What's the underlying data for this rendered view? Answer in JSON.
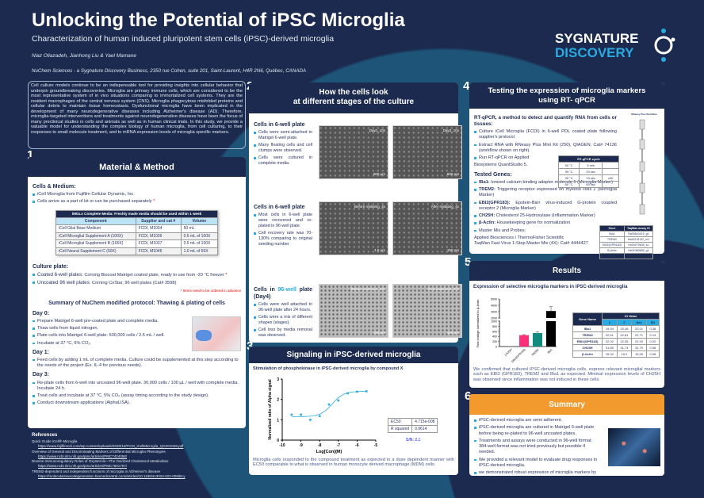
{
  "header": {
    "title": "Unlocking the Potential of iPSC Microglia",
    "subtitle": "Characterization of human induced pluripotent stem cells (iPSC)-derived microglia",
    "authors": "Niaz Oliazadeh, Jianhong Liu & Yael Mamane",
    "affiliation": "NuChem Sciences - a Sygnature Discovery Business, 2350 rue Cohen, suite 201, Saint-Laurent, H4R 2N6, Québec, CANADA",
    "logo_line1": "SYGNATURE",
    "logo_line2": "DISCOVERY"
  },
  "abstract": "Cell culture models continue to be an indispensable tool for providing insights into cellular behavior that underpin groundbreaking discoveries. Microglia are primary immune cells, which are considered to be the most representative system of in vivo situations comparing to immortalized cell systems. They are the resident macrophages of the central nervous system (CNS). Microglia phagocytose misfolded proteins and cellular debris to maintain tissue homeostasis. Dysfunctional microglia have been implicated in the development of many neurodegenerative diseases including Alzheimer's disease (AD). Therefore, microglia-targeted interventions and treatments against neurodegenerative diseases have been the focus of many preclinical studies in cells and animals as well as in human clinical trials. In this study, we provide a valuable model for understanding the complex biology of human microglia, from cell culturing, to their responses to small molecule treatment, and to mRNA expression levels of microglia specific markers.",
  "s1": {
    "num": "1",
    "title": "Material & Method",
    "cells_heading": "Cells & Medium:",
    "cells_items": [
      "iCell Microglia from Fujifilm Cellular Dynamic, Inc.",
      "Cells arrive as a part of kit or can be purchased separately"
    ],
    "media_table": {
      "caption": "iMGLs Complete Media: Freshly made media should be used within 1 week",
      "headers": [
        "Component",
        "Supplier and cat #",
        "Volume"
      ],
      "rows": [
        [
          "iCell Glial Base Medium",
          "FCDI, M1034",
          "50 mL"
        ],
        [
          "iCell Microglial Supplement A (100X)",
          "FCDI, M1036",
          "0.5 mL of 100X"
        ],
        [
          "iCell Microglial Supplement B (100X)",
          "FCDI, M1037",
          "0.5 mL of 100X"
        ],
        [
          "iCell Neural Supplement C (50X)",
          "FCDI, M1046",
          "1.0 mL of 50X"
        ]
      ]
    },
    "plate_heading": "Culture plate:",
    "plate_items": [
      {
        "label": "Coated 6-well plates:",
        "text": " Corning Biocoat Matrigel coated plate, ready to use from -20 °C freezer"
      },
      {
        "label": "Uncoated 96 well plates:",
        "text": " Corning CoStar, 96 well plates (Cat# 3598)"
      }
    ],
    "order_note": "* Items need to be ordered in advance",
    "protocol_title": "Summary of NuChem modified protocol: Thawing & plating of cells",
    "days": [
      {
        "day": "Day 0:",
        "items": [
          "Prepare Matrigel 6-well pre-coated plate and complete media.",
          "Thaw cells from liquid nitrogen.",
          "Plate cells into Matrigel 6-well plate: 500,000 cells / 2.5 mL / well.",
          "Incubate at 37 °C, 5% CO₂."
        ]
      },
      {
        "day": "Day 1:",
        "items": [
          "Feed cells by adding 1 mL of complete media. Culture could be supplemented at this step according to the needs of the project (Ex. IL-4 for previous needs)."
        ]
      },
      {
        "day": "Day 3:",
        "items": [
          "Re-plate cells from 6-well into uncoated 96-well plate. 30,000 cells / 100 µL / well with complete media. Incubate 24 h.",
          "Treat cells and incubate at 37 °C, 5% CO₂ (assay timing according to the study design).",
          "Conduct downstream applications (AlphaLISA)."
        ]
      }
    ]
  },
  "references": {
    "heading": "References",
    "items": [
      {
        "title": "Quick Guide iCell® Microglia",
        "url": "https://www.fujifilmcdi.com/wp-content/uploads/2020/10/FCDI_iCellMicroglia_QG201028.pdf"
      },
      {
        "title": "Overview of General and Discriminating Markers of Differential Microglia Phenotypes",
        "url": "https://www.ncbi.nlm.nih.gov/pmc/articles/PMC7424058/"
      },
      {
        "title": "Diverse Immunoregulatory Roles of Oxysterols—The Oxidized Cholesterol Metabolites",
        "url": "https://www.ncbi.nlm.nih.gov/pmc/articles/PMC7601797/"
      },
      {
        "title": "TREM2-dependent and independent functions of microglia in Alzheimer's disease",
        "url": "https://molecularneurodegeneration.biomedcentral.com/articles/10.1186/s13024-022-00588-y"
      }
    ]
  },
  "s2": {
    "num": "2",
    "title_l1": "How the cells look",
    "title_l2": "at different stages of the culture",
    "blocks": [
      {
        "heading": "Cells in 6-well plate",
        "items": [
          "Cells were semi-attached to Matrigel 6-well plate.",
          "Many floating cells and cell clumps were observed.",
          "Cells were cultured in complete media."
        ],
        "images": [
          {
            "label": "Day1_10x",
            "scale": "500 µm"
          },
          {
            "label": "Day3_10x",
            "scale": "500 µm"
          }
        ]
      },
      {
        "heading": "Cells in 6-well plate",
        "items": [
          "Most cells in 6-well plate were recovered and re-plated in 96 well plate.",
          "Cell recovery rate was 70-130% comparing to original seeding number"
        ],
        "images": [
          {
            "label": "Before replating_4x",
            "scale": "1.5 µm"
          },
          {
            "label": "After replating_4x",
            "scale": "150 µm"
          }
        ]
      },
      {
        "heading_a": "Cells in ",
        "heading_b": "96-well",
        "heading_c": " plate (Day4)",
        "items": [
          "Cells were well attached to 96-well plate after 24 hours.",
          "Cells were a mix of different shapes (stages).",
          "Cell loss by media removal was observed."
        ],
        "images": [
          {
            "label": "Before treatment_20x",
            "scale": "150 µm"
          },
          {
            "label": "Post treatment_20x",
            "scale": "150 µm"
          }
        ]
      }
    ]
  },
  "s3": {
    "num": "3",
    "title": "Signaling in iPSC-derived microglia",
    "subtitle": "Stimulation of phosphokinase in iPSC-derived microglia by compound X",
    "ec50_label": "EC50",
    "ec50_value": "4.715e-008",
    "r2_label": "R squared",
    "r2_value": "0.9614",
    "sn": "S/N: 2.1",
    "caption": "Microglia cells responded to the compound treatment as expected in a dose dependent manner with EC50 comparable to what is observed in human monocyte derived macrophage (MDM) cells."
  },
  "s4": {
    "num": "4",
    "title_l1": "Testing the expression of microglia markers",
    "title_l2": "using RT- qPCR",
    "method_heading": "RT-qPCR, a method to detect and quantify RNA from cells or tissues:",
    "method_items": [
      "Culture iCell Microglia (FCDI) in 6-well PDL coated plate following supplier's protocol.",
      "Extract RNA with RNeasy Plus Mini Kit (250), QIAGEN, Cat# 74136 (workflow shown on right).",
      "Run RT-qPCR on Applied"
    ],
    "method_tail": "Biosystems QuantStudio 5.",
    "cycle_table": {
      "caption": "RT-qPCR cycle",
      "rows": [
        [
          "50 °C",
          "5 min",
          ""
        ],
        [
          "95 °C",
          "20 sec",
          ""
        ],
        [
          "95 °C",
          "15 sec",
          "x40"
        ],
        [
          "60 °C",
          "60 sec",
          ""
        ]
      ]
    },
    "genes_heading": "Tested Genes:",
    "genes": [
      {
        "name": "IBa1:",
        "desc": " Ionized calcium binding adapter molecule 1 (Microglia Marker)"
      },
      {
        "name": "TREM2:",
        "desc": " Triggering receptor expressed on myeloid cells 2 (Microglia Marker)"
      },
      {
        "name": "EBI2(GPR183):",
        "desc": " Epstein-Barr virus-induced G-protein coupled receptor 2 (Microglia Marker)"
      },
      {
        "name": "CH25H:",
        "desc": " Cholesterol 25-Hydroxylase (Inflammation Marker)"
      },
      {
        "name": "β-Actin:",
        "desc": " Housekeeping gene for normalization"
      }
    ],
    "master_mix": "Master Mix and Probes:",
    "supplier": "Applied Biosciences / ThermoFisher Scientific",
    "taqman_kit": "TaqMan Fast Virus 1-Step Master Mix (4X): Cat# 4444427",
    "taqman_table": {
      "headers": [
        "Gene",
        "TaqMan assay ID"
      ],
      "rows": [
        [
          "IBa1",
          "Hs00610419_g1"
        ],
        [
          "TREM2",
          "Hs00219132_m1"
        ],
        [
          "EBI2(GPR183)",
          "Hs00270639_s1"
        ],
        [
          "B-Actin",
          "Hs01060665_g1"
        ],
        [
          "CH25H",
          "Hs02379634_s1"
        ]
      ]
    },
    "workflow_title": "RNeasy Plus Workflow"
  },
  "s5": {
    "num": "5",
    "title": "Results",
    "subtitle": "Expression of selective microglia markers in iPSC-derived  microglia",
    "ylabel": "Fold change normalized to β-Actin",
    "ct_table": {
      "group": "Ct Value",
      "headers": [
        "Gene Name",
        "1",
        "2",
        "Ave",
        "SD"
      ],
      "rows": [
        [
          "IBa1",
          "19,94",
          "20,48",
          "20,21",
          "0,38"
        ],
        [
          "TREM2",
          "22,61",
          "22,81",
          "22,71",
          "0,14"
        ],
        [
          "EBI2(GPR183)",
          "22,92",
          "22,95",
          "22,93",
          "0,02"
        ],
        [
          "CH25H",
          "31,85",
          "31,74",
          "31,79",
          "0,08"
        ],
        [
          "β-Actin",
          "15,32",
          "15,2",
          "15,26",
          "0,08"
        ]
      ]
    },
    "text": "We confirmed that cultured iPSC-derived  microglia cells, express relevant microglial markers such as EBI2 (GPR183), TREM2 and IBa1 as expected. Minimal expression levels of CH25H was observed since inflammation was not induced in these cells."
  },
  "s6": {
    "num": "6",
    "title": "Summary",
    "items": [
      "iPSC-derived microglia are semi adherent.",
      "iPSC-derived microglia are cultured in Matrigel  6-well plate before being re-plated to 96-well uncoated plates.",
      "Treatments and assays were conducted in 96-well format. 384-well format was not tried previously but possible if needed.",
      "We provided a relevant model to evaluate drug responses in iPSC-derived microglia.",
      "we demonstrated robust expression of microglia markers by RT-qPCR, can also be done by FACS."
    ]
  },
  "chart_data": [
    {
      "type": "scatter",
      "title": "",
      "xlabel": "Log[Con](M)",
      "ylabel": "Normalized ratio of Alpha signal",
      "xlim": [
        -10,
        -5
      ],
      "ylim": [
        0,
        3
      ],
      "xticks": [
        -10,
        -9,
        -8,
        -7,
        -6,
        -5
      ],
      "yticks": [
        0,
        1,
        2,
        3
      ],
      "x": [
        -9.5,
        -9,
        -8.5,
        -8,
        -7.5,
        -7,
        -6.5,
        -6,
        -5.5
      ],
      "y": [
        1.25,
        1.25,
        1.0,
        1.18,
        1.75,
        1.95,
        2.3,
        2.38,
        2.4
      ],
      "fit": {
        "model": "sigmoidal dose-response",
        "bottom": 1.15,
        "top": 2.4,
        "log_ec50": -7.33
      },
      "color": "#29abe2"
    },
    {
      "type": "bar",
      "categories": [
        "CH25H",
        "EBI2(GPR183)",
        "TREM2",
        "IBa1"
      ],
      "values": [
        5,
        450,
        530,
        3100
      ],
      "errors": [
        0,
        20,
        50,
        700
      ],
      "colors": [
        "#888888",
        "#ff2e7a",
        "#138a7e",
        "#000000"
      ],
      "ylabel": "Fold change normalized to β-Actin",
      "yticks": [
        0,
        200,
        400,
        600,
        800,
        1000,
        2000,
        3000,
        4000,
        5000
      ],
      "axis_break": [
        1000,
        2000
      ]
    }
  ],
  "colors": {
    "navy": "#1b2a4e",
    "teal": "#1d5478",
    "accent": "#29abe2",
    "orange": "#f39a2e"
  }
}
